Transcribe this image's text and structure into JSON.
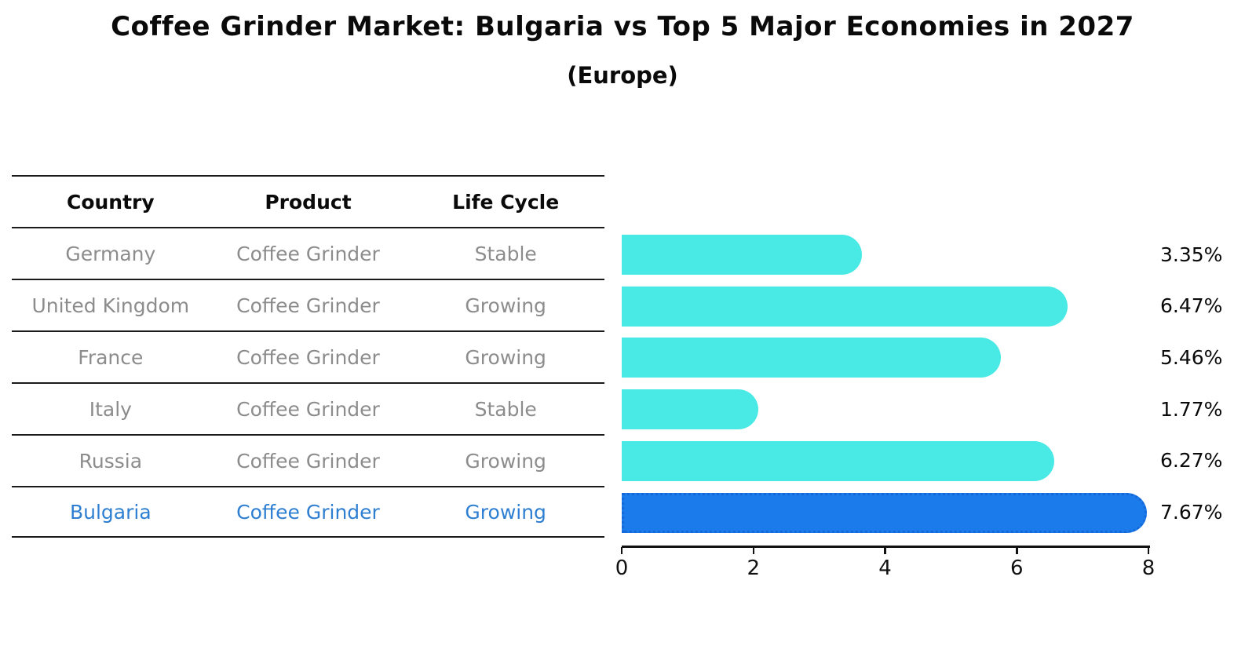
{
  "title": "Coffee Grinder Market: Bulgaria vs Top 5 Major Economies in 2027",
  "subtitle": "(Europe)",
  "table": {
    "headers": [
      "Country",
      "Product",
      "Life Cycle"
    ],
    "rows": [
      {
        "country": "Germany",
        "product": "Coffee Grinder",
        "life_cycle": "Stable",
        "highlight": false
      },
      {
        "country": "United Kingdom",
        "product": "Coffee Grinder",
        "life_cycle": "Growing",
        "highlight": false
      },
      {
        "country": "France",
        "product": "Coffee Grinder",
        "life_cycle": "Growing",
        "highlight": false
      },
      {
        "country": "Italy",
        "product": "Coffee Grinder",
        "life_cycle": "Stable",
        "highlight": false
      },
      {
        "country": "Russia",
        "product": "Coffee Grinder",
        "life_cycle": "Growing",
        "highlight": false
      },
      {
        "country": "Bulgaria",
        "product": "Coffee Grinder",
        "life_cycle": "Growing",
        "highlight": true
      }
    ]
  },
  "chart_data": {
    "type": "bar",
    "orientation": "horizontal",
    "title": "Coffee Grinder Market: Bulgaria vs Top 5 Major Economies in 2027 (Europe)",
    "categories": [
      "Germany",
      "United Kingdom",
      "France",
      "Italy",
      "Russia",
      "Bulgaria"
    ],
    "values": [
      3.35,
      6.47,
      5.46,
      1.77,
      6.27,
      7.67
    ],
    "value_labels": [
      "3.35%",
      "6.47%",
      "5.46%",
      "1.77%",
      "6.27%",
      "7.67%"
    ],
    "unit": "%",
    "xlim": [
      0,
      8
    ],
    "x_ticks": [
      "0",
      "2",
      "4",
      "6",
      "8"
    ],
    "highlight_index": 5,
    "grid": false,
    "legend": false,
    "colors": {
      "bar": "#49E9E5",
      "highlight_bar": "#1B7BEB",
      "highlight_border": "#1568D8",
      "highlight_text": "#2E7FD2",
      "table_text": "#8C8C8C",
      "axis_text": "#111111"
    }
  }
}
